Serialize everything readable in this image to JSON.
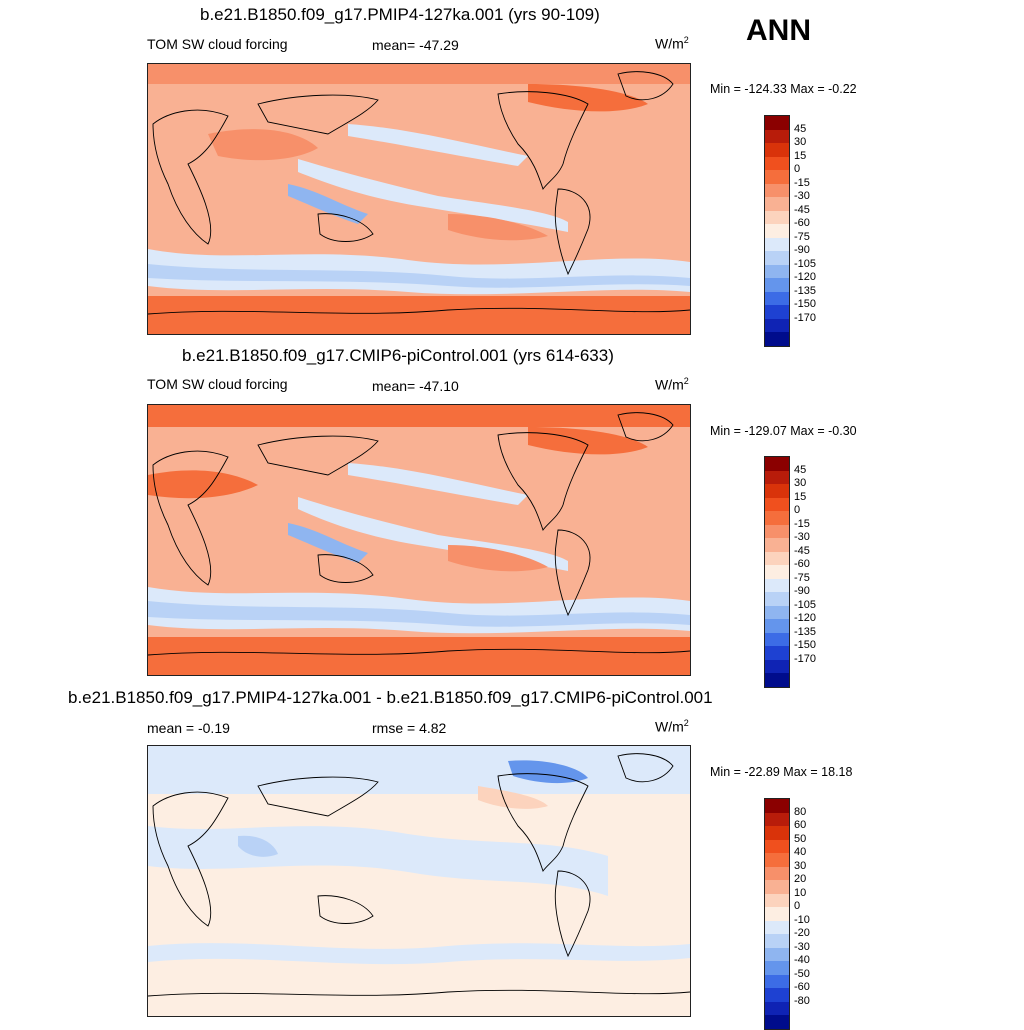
{
  "season": "ANN",
  "panels": [
    {
      "title": "b.e21.B1850.f09_g17.PMIP4-127ka.001 (yrs 90-109)",
      "left_label": "TOM SW cloud forcing",
      "center_label": "mean= -47.29",
      "units_base": "W/m",
      "units_exp": "2",
      "minmax": "Min = -124.33 Max =  -0.22",
      "colorbar_labels": [
        "45",
        "30",
        "15",
        "0",
        "-15",
        "-30",
        "-45",
        "-60",
        "-75",
        "-90",
        "-105",
        "-120",
        "-135",
        "-150",
        "-170"
      ]
    },
    {
      "title": "b.e21.B1850.f09_g17.CMIP6-piControl.001 (yrs 614-633)",
      "left_label": "TOM SW cloud forcing",
      "center_label": "mean= -47.10",
      "units_base": "W/m",
      "units_exp": "2",
      "minmax": "Min = -129.07 Max =  -0.30",
      "colorbar_labels": [
        "45",
        "30",
        "15",
        "0",
        "-15",
        "-30",
        "-45",
        "-60",
        "-75",
        "-90",
        "-105",
        "-120",
        "-135",
        "-150",
        "-170"
      ]
    },
    {
      "title": "b.e21.B1850.f09_g17.PMIP4-127ka.001 - b.e21.B1850.f09_g17.CMIP6-piControl.001",
      "left_label": "mean =  -0.19",
      "center_label": "rmse =   4.82",
      "units_base": "W/m",
      "units_exp": "2",
      "minmax": "Min = -22.89 Max =  18.18",
      "colorbar_labels": [
        "80",
        "60",
        "50",
        "40",
        "30",
        "20",
        "10",
        "0",
        "-10",
        "-20",
        "-30",
        "-40",
        "-50",
        "-60",
        "-80"
      ]
    }
  ],
  "colors": {
    "scale": [
      "#8b0000",
      "#b81c0a",
      "#d9330a",
      "#f0501e",
      "#f56e3c",
      "#f7906a",
      "#f9b193",
      "#fcd3bd",
      "#fdeee2",
      "#dce9fa",
      "#b9d2f6",
      "#8fb5f0",
      "#6495ec",
      "#3c6ce6",
      "#1e41d2",
      "#0f23b4",
      "#000c8c"
    ],
    "land_outline": "#000000"
  },
  "chart_data": [
    {
      "type": "heatmap",
      "title": "b.e21.B1850.f09_g17.PMIP4-127ka.001 (yrs 90-109)",
      "variable": "TOM SW cloud forcing",
      "units": "W/m2",
      "mean": -47.29,
      "min": -124.33,
      "max": -0.22,
      "contour_levels": [
        45,
        30,
        15,
        0,
        -15,
        -30,
        -45,
        -60,
        -75,
        -90,
        -105,
        -120,
        -135,
        -150,
        -170
      ],
      "projection": "cylindrical equidistant, Pacific-centered"
    },
    {
      "type": "heatmap",
      "title": "b.e21.B1850.f09_g17.CMIP6-piControl.001 (yrs 614-633)",
      "variable": "TOM SW cloud forcing",
      "units": "W/m2",
      "mean": -47.1,
      "min": -129.07,
      "max": -0.3,
      "contour_levels": [
        45,
        30,
        15,
        0,
        -15,
        -30,
        -45,
        -60,
        -75,
        -90,
        -105,
        -120,
        -135,
        -150,
        -170
      ],
      "projection": "cylindrical equidistant, Pacific-centered"
    },
    {
      "type": "heatmap",
      "title": "b.e21.B1850.f09_g17.PMIP4-127ka.001 - b.e21.B1850.f09_g17.CMIP6-piControl.001",
      "units": "W/m2",
      "mean": -0.19,
      "rmse": 4.82,
      "min": -22.89,
      "max": 18.18,
      "contour_levels": [
        80,
        60,
        50,
        40,
        30,
        20,
        10,
        0,
        -10,
        -20,
        -30,
        -40,
        -50,
        -60,
        -80
      ],
      "projection": "cylindrical equidistant, Pacific-centered"
    }
  ]
}
